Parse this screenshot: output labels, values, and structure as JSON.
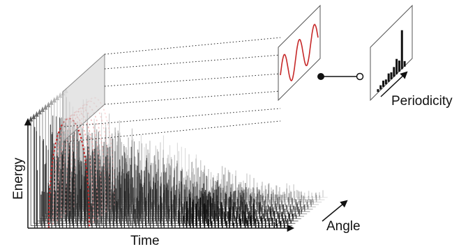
{
  "labels": {
    "energy": "Energy",
    "time": "Time",
    "angle": "Angle",
    "periodicity": "Periodicity"
  },
  "colors": {
    "curve_red": "#c62828",
    "curve_faint": "#f0a0a0",
    "ink": "#111111",
    "plane_fill": "#cfcfcf",
    "panel_edge": "#555555"
  },
  "structure": {
    "stacked_spectra_count": 14,
    "sinusoid_cycles": 2.5,
    "periodicity_bar_count": 11
  }
}
